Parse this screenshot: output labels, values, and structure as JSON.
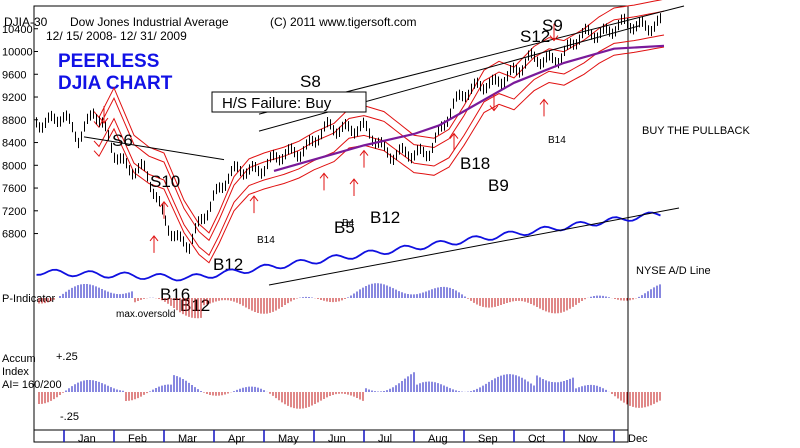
{
  "header": {
    "symbol": "DJIA-30",
    "name": "Dow Jones Industrial Average",
    "copyright": "(C) 2011 www.tigersoft.com",
    "date_range": "12/ 15/ 2008- 12/ 31/ 2009"
  },
  "title": {
    "line1": "PEERLESS",
    "line2": "DJIA CHART"
  },
  "colors": {
    "price": "#000000",
    "ma_purple": "#7a1a9a",
    "band_red": "#e01010",
    "ad_line": "#1010e0",
    "title_blue": "#1212e6",
    "hist_blue": "#1010c0",
    "hist_red": "#c01010"
  },
  "chart_data": [
    {
      "type": "line",
      "title": "Dow Jones Industrial Average",
      "months": [
        "Jan",
        "Feb",
        "Mar",
        "Apr",
        "May",
        "Jun",
        "Jul",
        "Aug",
        "Sep",
        "Oct",
        "Nov",
        "Dec"
      ],
      "yticks": [
        6800,
        7200,
        7600,
        8000,
        8400,
        8800,
        9200,
        9600,
        10000,
        10400
      ],
      "ylim": [
        6300,
        10800
      ],
      "series": [
        {
          "name": "DJIA close (approx)",
          "x": [
            0,
            0.3,
            0.6,
            1,
            1.3,
            1.6,
            2,
            2.3,
            2.5,
            2.7,
            3,
            3.3,
            3.6,
            4,
            4.3,
            4.6,
            5,
            5.3,
            5.6,
            6,
            6.3,
            6.6,
            7,
            7.3,
            7.6,
            8,
            8.3,
            8.6,
            9,
            9.3,
            9.6,
            10,
            10.3,
            10.6,
            11,
            11.3,
            11.6,
            12
          ],
          "values": [
            8800,
            8500,
            9000,
            8200,
            8000,
            7900,
            7100,
            6700,
            6550,
            6900,
            7500,
            7800,
            7900,
            8000,
            8100,
            8250,
            8400,
            8650,
            8700,
            8600,
            8400,
            8200,
            8150,
            8300,
            8700,
            9300,
            9450,
            9350,
            9700,
            9850,
            9800,
            10000,
            10200,
            10350,
            10400,
            10450,
            10500,
            10450
          ]
        },
        {
          "name": "Moving average (purple)",
          "x": [
            4.2,
            5,
            6,
            7,
            7.5,
            8,
            9,
            10,
            11,
            12
          ],
          "values": [
            7900,
            8100,
            8350,
            8550,
            8700,
            8950,
            9450,
            9800,
            10050,
            10100
          ]
        }
      ],
      "annotations": [
        {
          "label": "S6"
        },
        {
          "label": "S10"
        },
        {
          "label": "S8"
        },
        {
          "label": "S12"
        },
        {
          "label": "S9"
        },
        {
          "label": "B12"
        },
        {
          "label": "B16"
        },
        {
          "label": "B12"
        },
        {
          "label": "B5"
        },
        {
          "label": "B4"
        },
        {
          "label": "B12"
        },
        {
          "label": "B14"
        },
        {
          "label": "B18"
        },
        {
          "label": "B9"
        },
        {
          "label": "B14"
        }
      ]
    },
    {
      "type": "line",
      "title": "NYSE A/D Line",
      "trend": "rising from lows in March to new highs in December"
    },
    {
      "type": "bar",
      "title": "P-Indicator",
      "note": "max.oversold"
    },
    {
      "type": "bar",
      "title": "Accum Index",
      "ytick_labels": [
        "+.25",
        "-.25"
      ],
      "ai_reading": "AI= 160/200"
    }
  ],
  "labels": {
    "hs_failure": "H/S Failure: Buy",
    "buy_pullback": "BUY THE PULLBACK",
    "nyse_ad": "NYSE A/D Line",
    "p_indicator": "P-Indicator",
    "max_oversold": "max.oversold",
    "accum_line1": "Accum",
    "accum_line2": "Index",
    "accum_line3": "AI= 160/200",
    "accum_plus": "+.25",
    "accum_minus": "-.25"
  },
  "signals": {
    "s6": "S6",
    "s10": "S10",
    "s8": "S8",
    "s12": "S12",
    "s9": "S9",
    "b12_mar": "B12",
    "b16": "B16",
    "b12_low": "B12",
    "b5": "B5",
    "b4": "B4",
    "b12_jul": "B12",
    "b14_apr": "B14",
    "b18": "B18",
    "b9": "B9",
    "b14_oct": "B14"
  }
}
